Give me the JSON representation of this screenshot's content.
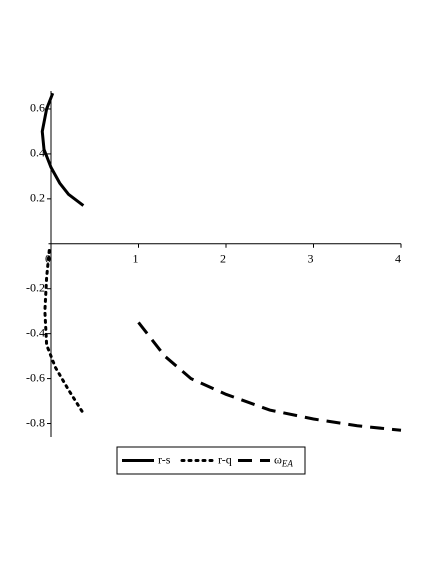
{
  "chart_data": {
    "type": "line",
    "xlim": [
      -0.12,
      4
    ],
    "ylim": [
      -0.86,
      0.68
    ],
    "xticks": [
      0,
      1,
      2,
      3,
      4
    ],
    "yticks": [
      -0.8,
      -0.6,
      -0.4,
      -0.2,
      0.2,
      0.4,
      0.6
    ],
    "series": [
      {
        "name": "r-s",
        "color": "#000000",
        "dash": "solid",
        "x": [
          0.02,
          -0.05,
          -0.1,
          -0.08,
          0,
          0.1,
          0.2,
          0.37
        ],
        "values": [
          0.67,
          0.6,
          0.5,
          0.42,
          0.34,
          0.27,
          0.22,
          0.17
        ]
      },
      {
        "name": "r-q",
        "color": "#000000",
        "dash": "dotted",
        "x": [
          -0.02,
          -0.05,
          -0.07,
          -0.05,
          0.05,
          0.2,
          0.37
        ],
        "values": [
          -0.03,
          -0.15,
          -0.3,
          -0.45,
          -0.55,
          -0.65,
          -0.755
        ]
      },
      {
        "name": "ω",
        "subscript": "EA",
        "color": "#000000",
        "dash": "dashed",
        "x": [
          1,
          1.3,
          1.6,
          2,
          2.5,
          3,
          3.5,
          4
        ],
        "values": [
          -0.35,
          -0.5,
          -0.6,
          -0.67,
          -0.74,
          -0.78,
          -0.81,
          -0.83
        ]
      }
    ]
  }
}
